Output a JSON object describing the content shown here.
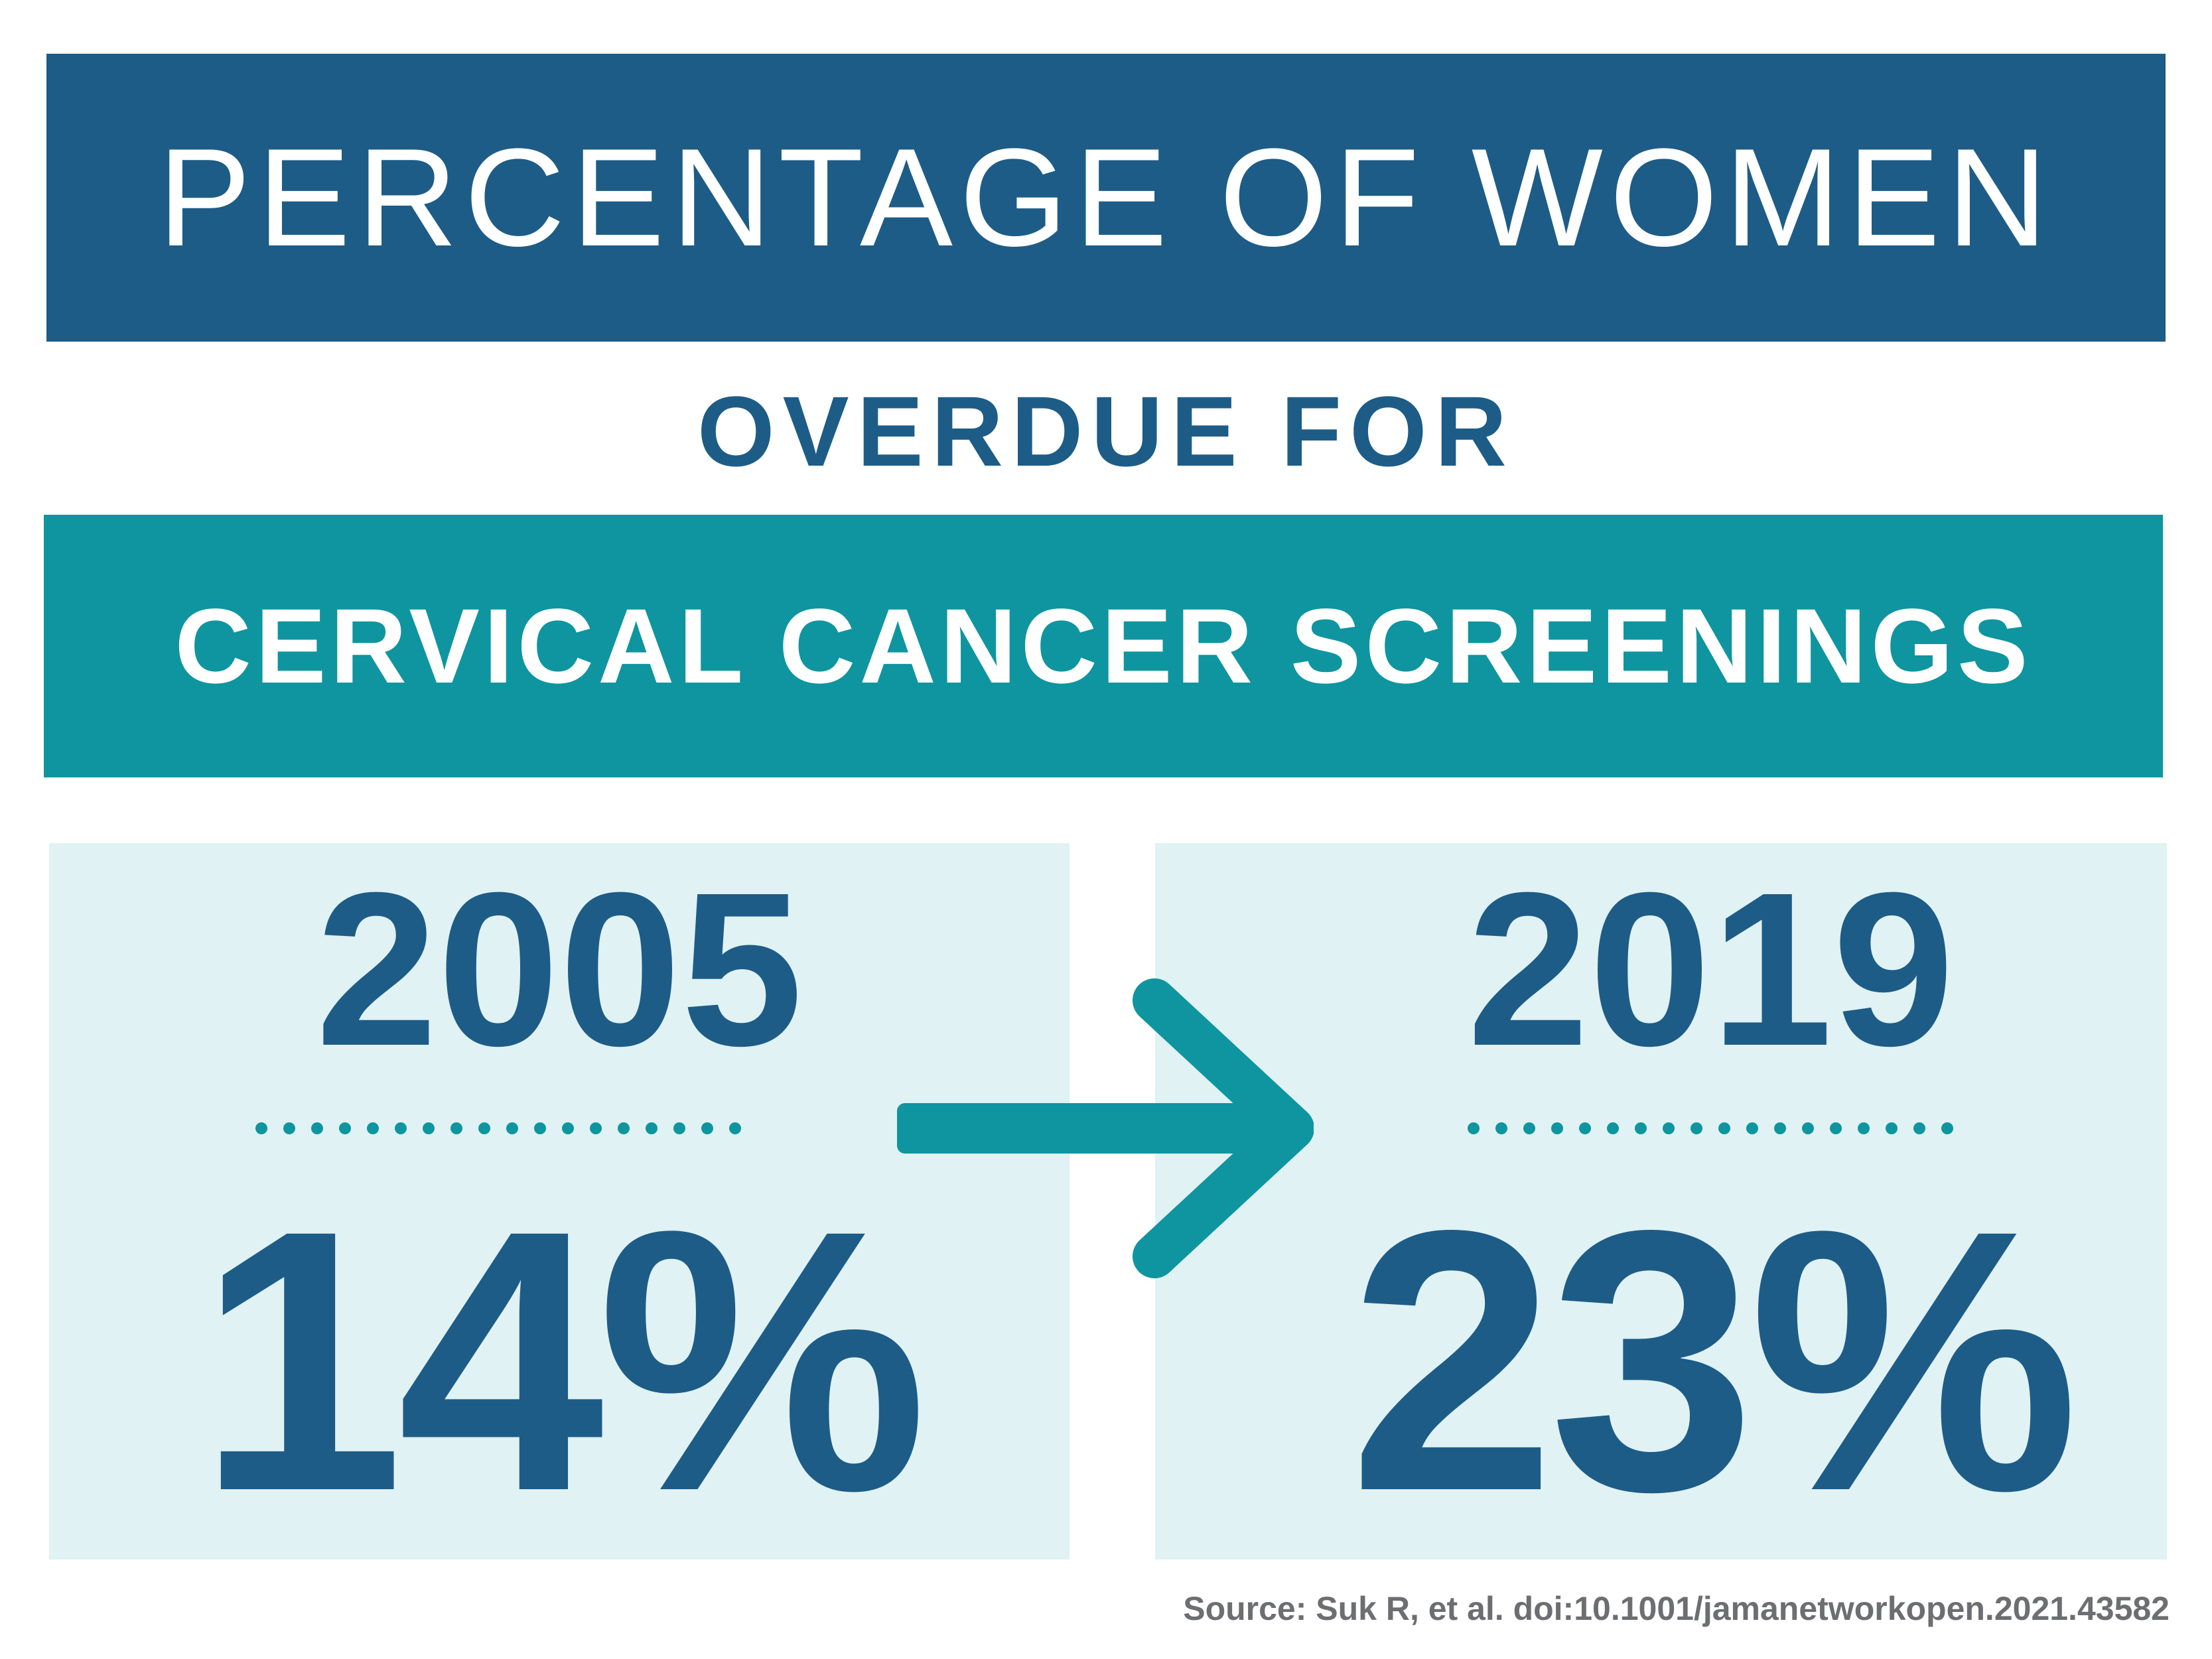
{
  "title": "PERCENTAGE OF WOMEN",
  "subtitle": "OVERDUE FOR",
  "topic": "CERVICAL CANCER SCREENINGS",
  "comparison": [
    {
      "year": "2005",
      "percent": "14%"
    },
    {
      "year": "2019",
      "percent": "23%"
    }
  ],
  "arrow_icon": "arrow-right-icon",
  "source": "Source: Suk R, et al. doi:10.1001/jamanetworkopen.2021.43582",
  "colors": {
    "navy": "#1d5c87",
    "teal": "#0e95a0",
    "panel": "#e0f2f3",
    "source_gray": "#6d6e71"
  }
}
